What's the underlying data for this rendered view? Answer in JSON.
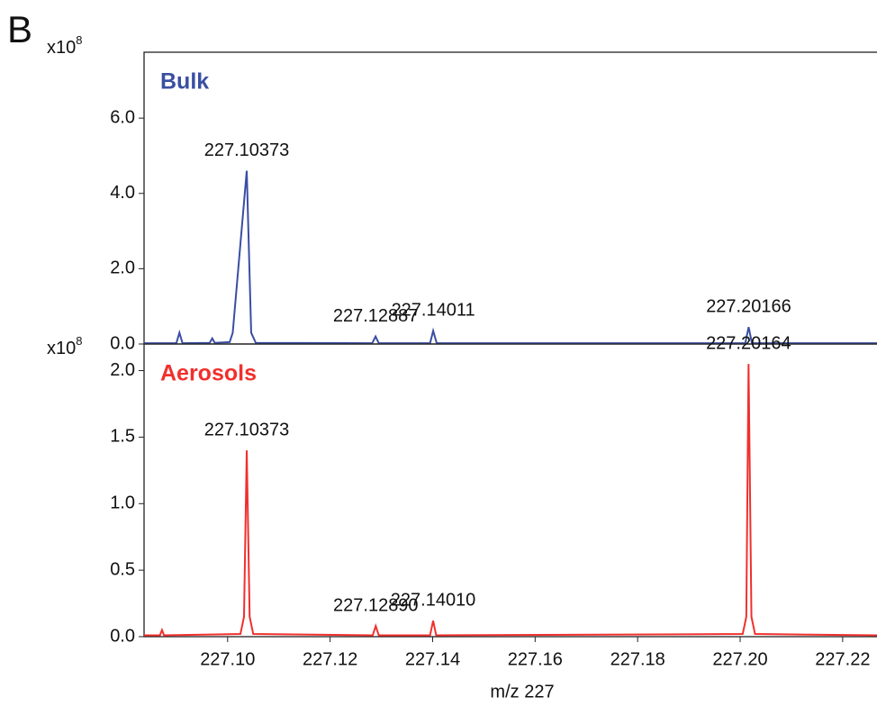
{
  "panel_label": "B",
  "chart_data": [
    {
      "type": "line",
      "title": "Bulk",
      "color": "#3a4ea3",
      "y_multiplier": "x10",
      "y_exponent": "8",
      "x": [
        227.0837,
        227.09,
        227.0906,
        227.0912,
        227.0965,
        227.097,
        227.0975,
        227.1004,
        227.101,
        227.10373,
        227.1046,
        227.1055,
        227.1282,
        227.12887,
        227.1295,
        227.1395,
        227.14011,
        227.1408,
        227.201,
        227.20166,
        227.2023,
        227.2267
      ],
      "values": [
        0.02,
        0.02,
        0.3,
        0.02,
        0.03,
        0.15,
        0.03,
        0.05,
        0.3,
        4.6,
        0.3,
        0.03,
        0.02,
        0.2,
        0.02,
        0.02,
        0.35,
        0.02,
        0.02,
        0.45,
        0.02,
        0.02
      ],
      "xlim": [
        227.0837,
        227.2267
      ],
      "ylim": [
        0,
        7.75
      ],
      "yticks": [
        {
          "value": 0,
          "label": "0.0"
        },
        {
          "value": 2,
          "label": "2.0"
        },
        {
          "value": 4,
          "label": "4.0"
        },
        {
          "value": 6,
          "label": "6.0"
        }
      ],
      "annotations": [
        {
          "text": "227.10373",
          "x": 227.10373
        },
        {
          "text": "227.12887",
          "x": 227.12887
        },
        {
          "text": "227.14011",
          "x": 227.14011
        },
        {
          "text": "227.20166",
          "x": 227.20166
        }
      ]
    },
    {
      "type": "line",
      "title": "Aerosols",
      "color": "#f0302d",
      "y_multiplier": "x10",
      "y_exponent": "8",
      "x": [
        227.0837,
        227.0868,
        227.0872,
        227.0876,
        227.1025,
        227.1032,
        227.10373,
        227.1043,
        227.105,
        227.1283,
        227.1289,
        227.1295,
        227.1395,
        227.1401,
        227.1407,
        227.2005,
        227.2012,
        227.20164,
        227.2022,
        227.2029,
        227.2267
      ],
      "values": [
        0.01,
        0.01,
        0.05,
        0.01,
        0.02,
        0.15,
        1.4,
        0.15,
        0.02,
        0.01,
        0.08,
        0.01,
        0.01,
        0.12,
        0.01,
        0.02,
        0.15,
        2.05,
        0.15,
        0.02,
        0.01
      ],
      "xlim": [
        227.0837,
        227.2267
      ],
      "ylim": [
        0,
        2.2
      ],
      "xlabel": "m/z 227",
      "xticks": [
        {
          "value": 227.1,
          "label": "227.10"
        },
        {
          "value": 227.12,
          "label": "227.12"
        },
        {
          "value": 227.14,
          "label": "227.14"
        },
        {
          "value": 227.16,
          "label": "227.16"
        },
        {
          "value": 227.18,
          "label": "227.18"
        },
        {
          "value": 227.2,
          "label": "227.20"
        },
        {
          "value": 227.22,
          "label": "227.22"
        }
      ],
      "yticks": [
        {
          "value": 0,
          "label": "0.0"
        },
        {
          "value": 0.5,
          "label": "0.5"
        },
        {
          "value": 1,
          "label": "1.0"
        },
        {
          "value": 1.5,
          "label": "1.5"
        },
        {
          "value": 2,
          "label": "2.0"
        }
      ],
      "annotations": [
        {
          "text": "227.10373",
          "x": 227.10373
        },
        {
          "text": "227.12890",
          "x": 227.1289
        },
        {
          "text": "227.14010",
          "x": 227.1401
        },
        {
          "text": "227.20164",
          "x": 227.20164
        }
      ]
    }
  ]
}
